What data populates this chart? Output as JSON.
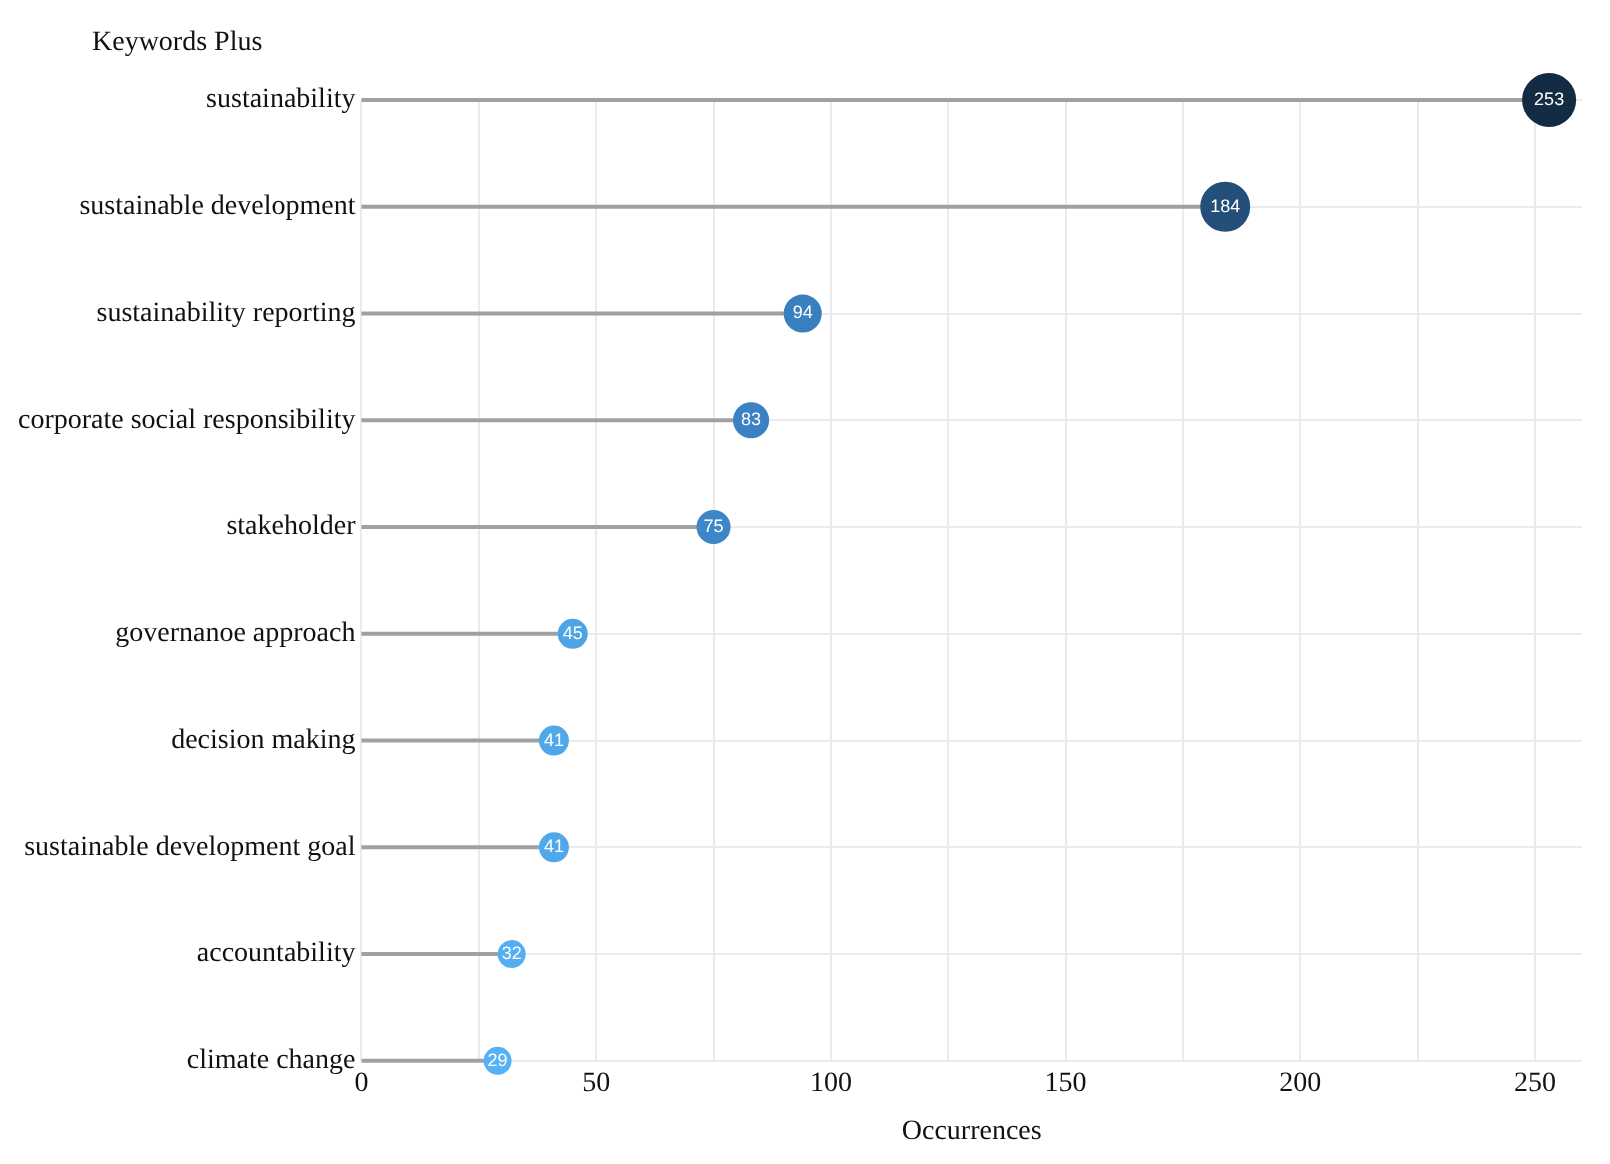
{
  "chart_data": {
    "type": "lollipop",
    "ylabel": "Keywords Plus",
    "xlabel": "Occurrences",
    "orientation": "horizontal",
    "categories": [
      "sustainability",
      "sustainable development",
      "sustainability reporting",
      "corporate social responsibility",
      "stakeholder",
      "governanoe approach",
      "decision making",
      "sustainable development goal",
      "accountability",
      "climate change"
    ],
    "values": [
      253,
      184,
      94,
      83,
      75,
      45,
      41,
      41,
      32,
      29
    ],
    "sizes": [
      1,
      0.85,
      0.48,
      0.43,
      0.38,
      0.29,
      0.29,
      0.29,
      0.25,
      0.25
    ],
    "colors": [
      "#132b43",
      "#234f78",
      "#3a7fc0",
      "#3b82c4",
      "#3d87c9",
      "#4ea5e6",
      "#50a8ea",
      "#50a8ea",
      "#54aef3",
      "#56b1f7"
    ],
    "xlim": [
      0,
      260
    ],
    "xticks": [
      0,
      {
        "value": 25,
        "label": null
      },
      50,
      {
        "value": 75,
        "label": null
      },
      100,
      {
        "value": 125,
        "label": null
      },
      150,
      {
        "value": 175,
        "label": null
      },
      200,
      {
        "value": 225,
        "label": null
      },
      250
    ],
    "grid": true,
    "data_labels": true,
    "marker": "circle"
  }
}
